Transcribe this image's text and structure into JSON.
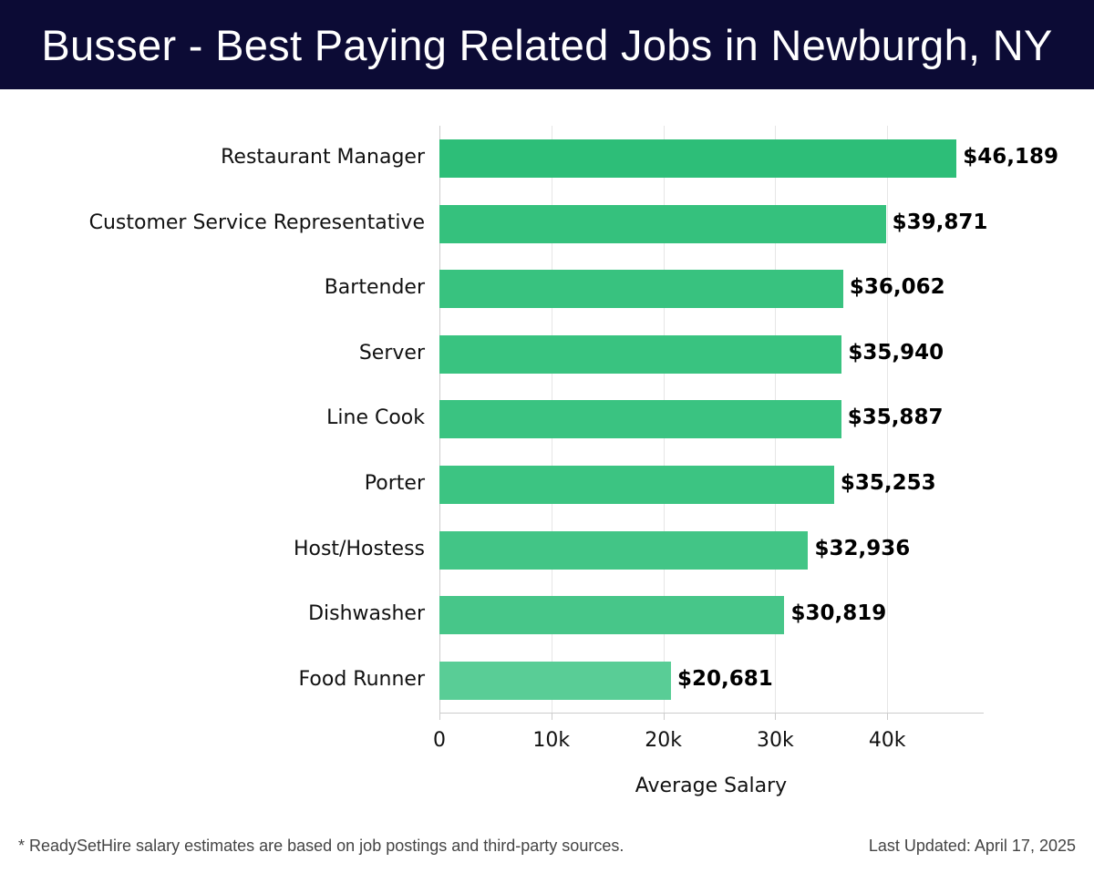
{
  "header": {
    "title": "Busser - Best Paying Related Jobs in Newburgh, NY"
  },
  "footer": {
    "note": "* ReadySetHire salary estimates are based on job postings and third-party sources.",
    "last_updated": "Last Updated: April 17, 2025"
  },
  "chart_data": {
    "type": "bar",
    "orientation": "horizontal",
    "title": "Busser - Best Paying Related Jobs in Newburgh, NY",
    "xlabel": "Average Salary",
    "ylabel": "",
    "categories": [
      "Restaurant Manager",
      "Customer Service Representative",
      "Bartender",
      "Server",
      "Line Cook",
      "Porter",
      "Host/Hostess",
      "Dishwasher",
      "Food Runner"
    ],
    "values": [
      46189,
      39871,
      36062,
      35940,
      35887,
      35253,
      32936,
      30819,
      20681
    ],
    "value_labels": [
      "$46,189",
      "$39,871",
      "$36,062",
      "$35,940",
      "$35,887",
      "$35,253",
      "$32,936",
      "$30,819",
      "$20,681"
    ],
    "xlim": [
      0,
      48600
    ],
    "xticks": [
      0,
      10000,
      20000,
      30000,
      40000
    ],
    "xtick_labels": [
      "0",
      "10k",
      "20k",
      "30k",
      "40k"
    ],
    "grid": true,
    "legend": null,
    "colors": [
      "#2dbe78",
      "#35c17d",
      "#38c27f",
      "#39c380",
      "#3ac381",
      "#3cc482",
      "#42c586",
      "#47c689",
      "#59cd96"
    ]
  }
}
